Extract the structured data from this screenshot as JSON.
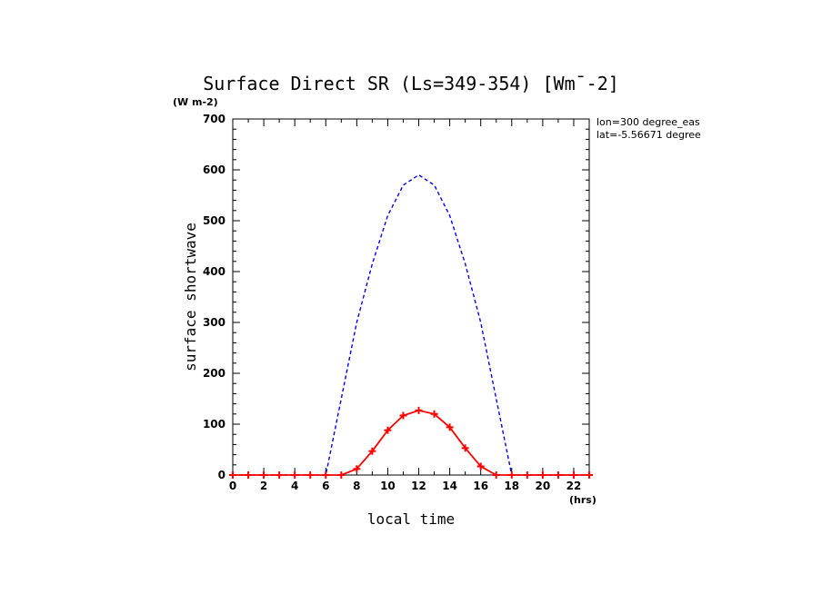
{
  "chart_data": {
    "type": "line",
    "title": "Surface Direct SR (Ls=349-354) [Wm¯-2]",
    "ylabel": "surface shortwave",
    "yunits": "(W m-2)",
    "xlabel": "local time",
    "xunits": "(hrs)",
    "xlim": [
      0,
      23
    ],
    "ylim": [
      0,
      700
    ],
    "xticks": [
      0,
      2,
      4,
      6,
      8,
      10,
      12,
      14,
      16,
      18,
      20,
      22
    ],
    "yticks": [
      0,
      100,
      200,
      300,
      400,
      500,
      600,
      700
    ],
    "annotations": [
      "lon=300 degree_eas",
      "lat=-5.56671 degree"
    ],
    "grid": false,
    "series": [
      {
        "color": "#0000ff",
        "style": "dashed",
        "x": [
          0,
          1,
          2,
          3,
          4,
          5,
          6,
          7,
          8,
          9,
          10,
          11,
          12,
          13,
          14,
          15,
          16,
          17,
          18,
          19,
          20,
          21,
          22,
          23
        ],
        "values": [
          0,
          0,
          0,
          0,
          0,
          0,
          0,
          150,
          300,
          415,
          510,
          570,
          590,
          570,
          510,
          415,
          300,
          150,
          0,
          0,
          0,
          0,
          0,
          0
        ]
      },
      {
        "color": "#ff0000",
        "style": "solid",
        "marker": "plus",
        "x": [
          0,
          1,
          2,
          3,
          4,
          5,
          6,
          7,
          8,
          9,
          10,
          11,
          12,
          13,
          14,
          15,
          16,
          17,
          18,
          19,
          20,
          21,
          22,
          23
        ],
        "values": [
          0,
          0,
          0,
          0,
          0,
          0,
          0,
          0,
          12,
          47,
          88,
          117,
          127,
          120,
          94,
          53,
          17,
          0,
          0,
          0,
          0,
          0,
          0,
          0
        ]
      }
    ]
  }
}
